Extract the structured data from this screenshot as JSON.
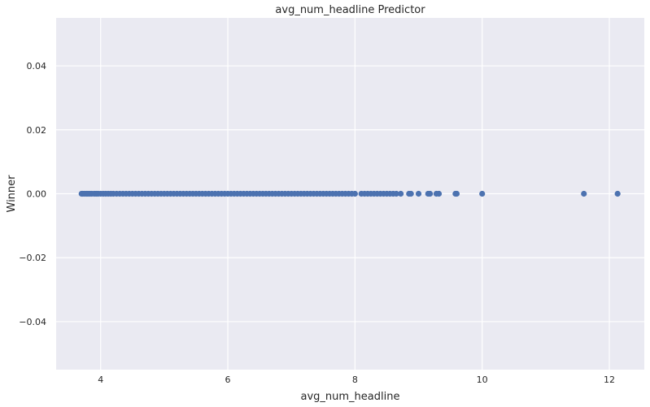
{
  "chart_data": {
    "type": "scatter",
    "title": "avg_num_headline Predictor",
    "xlabel": "avg_num_headline",
    "ylabel": "Winner",
    "xlim": [
      3.3,
      12.55
    ],
    "ylim": [
      -0.055,
      0.055
    ],
    "xticks": [
      4,
      6,
      8,
      10,
      12
    ],
    "xtick_labels": [
      "4",
      "6",
      "8",
      "10",
      "12"
    ],
    "yticks": [
      -0.04,
      -0.02,
      0.0,
      0.02,
      0.04
    ],
    "ytick_labels": [
      "−0.04",
      "−0.02",
      "0.00",
      "0.02",
      "0.04"
    ],
    "grid": true,
    "series": [
      {
        "color": "#4c72b0",
        "x": [
          3.7,
          3.72,
          3.75,
          3.78,
          3.8,
          3.83,
          3.86,
          3.9,
          3.93,
          3.96,
          4.0,
          4.04,
          4.08,
          4.12,
          4.16,
          4.2,
          4.25,
          4.3,
          4.35,
          4.4,
          4.45,
          4.5,
          4.55,
          4.6,
          4.65,
          4.7,
          4.75,
          4.8,
          4.85,
          4.9,
          4.95,
          5.0,
          5.05,
          5.1,
          5.15,
          5.2,
          5.25,
          5.3,
          5.35,
          5.4,
          5.45,
          5.5,
          5.55,
          5.6,
          5.65,
          5.7,
          5.75,
          5.8,
          5.85,
          5.9,
          5.95,
          6.0,
          6.05,
          6.1,
          6.15,
          6.2,
          6.25,
          6.3,
          6.35,
          6.4,
          6.45,
          6.5,
          6.55,
          6.6,
          6.65,
          6.7,
          6.75,
          6.8,
          6.85,
          6.9,
          6.95,
          7.0,
          7.05,
          7.1,
          7.15,
          7.2,
          7.25,
          7.3,
          7.35,
          7.4,
          7.45,
          7.5,
          7.55,
          7.6,
          7.65,
          7.7,
          7.75,
          7.8,
          7.85,
          7.9,
          7.95,
          8.0,
          8.1,
          8.15,
          8.2,
          8.25,
          8.3,
          8.35,
          8.4,
          8.45,
          8.5,
          8.55,
          8.6,
          8.65,
          8.72,
          8.85,
          8.88,
          9.0,
          9.15,
          9.18,
          9.28,
          9.32,
          9.58,
          9.6,
          10.0,
          11.6,
          12.13
        ],
        "y": [
          0,
          0,
          0,
          0,
          0,
          0,
          0,
          0,
          0,
          0,
          0,
          0,
          0,
          0,
          0,
          0,
          0,
          0,
          0,
          0,
          0,
          0,
          0,
          0,
          0,
          0,
          0,
          0,
          0,
          0,
          0,
          0,
          0,
          0,
          0,
          0,
          0,
          0,
          0,
          0,
          0,
          0,
          0,
          0,
          0,
          0,
          0,
          0,
          0,
          0,
          0,
          0,
          0,
          0,
          0,
          0,
          0,
          0,
          0,
          0,
          0,
          0,
          0,
          0,
          0,
          0,
          0,
          0,
          0,
          0,
          0,
          0,
          0,
          0,
          0,
          0,
          0,
          0,
          0,
          0,
          0,
          0,
          0,
          0,
          0,
          0,
          0,
          0,
          0,
          0,
          0,
          0,
          0,
          0,
          0,
          0,
          0,
          0,
          0,
          0,
          0,
          0,
          0,
          0,
          0,
          0,
          0,
          0,
          0,
          0,
          0,
          0,
          0,
          0,
          0,
          0,
          0
        ]
      }
    ],
    "plot_background": "#eaeaf2",
    "grid_color": "#ffffff"
  }
}
